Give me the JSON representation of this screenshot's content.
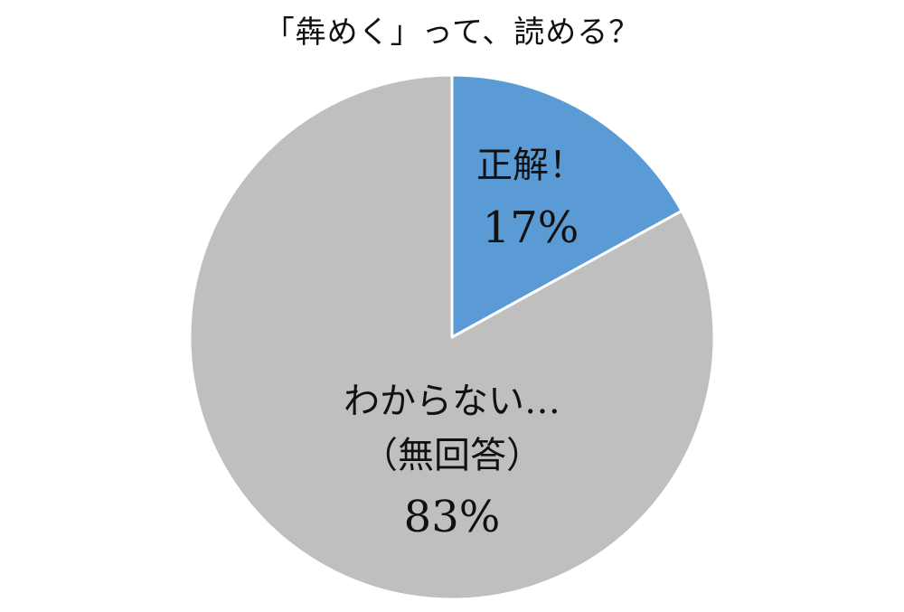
{
  "chart_data": {
    "type": "pie",
    "title": "「犇めく」って、読める？",
    "slices": [
      {
        "label": "正解！",
        "sublabel": "",
        "value": 17,
        "value_label": "17%",
        "color": "#5b9bd5"
      },
      {
        "label": "わからない…",
        "sublabel": "（無回答）",
        "value": 83,
        "value_label": "83%",
        "color": "#bfbfbf"
      }
    ],
    "start_angle": "12 o'clock",
    "direction": "clockwise",
    "legend": "none",
    "slice_border_color": "#ffffff"
  }
}
